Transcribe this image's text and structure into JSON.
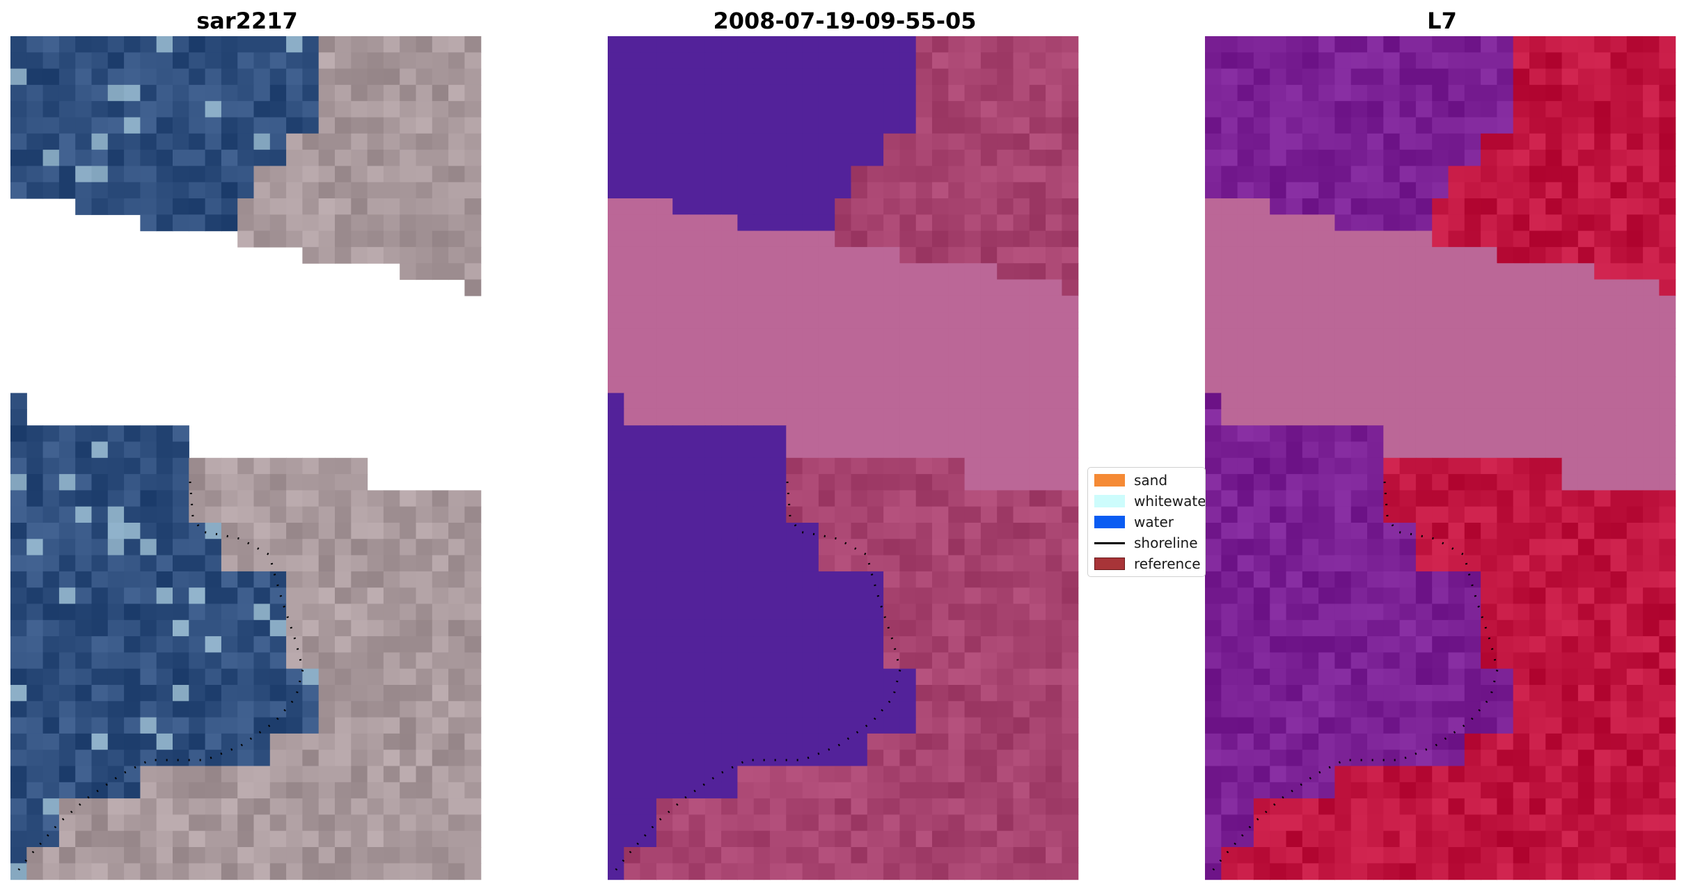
{
  "panels": [
    {
      "title": "sar2217"
    },
    {
      "title": "2008-07-19-09-55-05"
    },
    {
      "title": "L7"
    }
  ],
  "legend": {
    "items": [
      {
        "label": "sand",
        "color": "#f58a35"
      },
      {
        "label": "whitewater",
        "color": "#cdfcfc"
      },
      {
        "label": "water",
        "color": "#0a5cf2"
      },
      {
        "label": "shoreline",
        "color": "#000000"
      },
      {
        "label": "reference",
        "color": "#a83438"
      }
    ]
  },
  "colors": {
    "classified_water": "#53229a",
    "classified_nodata": "#bb6797",
    "classified_land": "#a7436f",
    "ndwi_water": "#7a2094",
    "ndwi_land": "#c0143f",
    "rgb_water": "#2f4f7e",
    "rgb_land": "#a9999c"
  }
}
